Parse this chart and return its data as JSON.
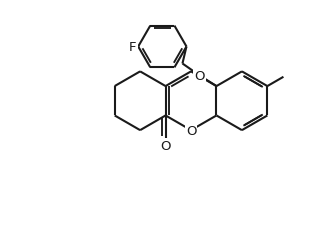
{
  "bg_color": "#ffffff",
  "line_color": "#1a1a1a",
  "line_width": 1.5,
  "font_size_label": 9.5,
  "figsize": [
    3.23,
    2.53
  ],
  "dpi": 100,
  "xlim": [
    0,
    10
  ],
  "ylim": [
    0,
    8
  ]
}
